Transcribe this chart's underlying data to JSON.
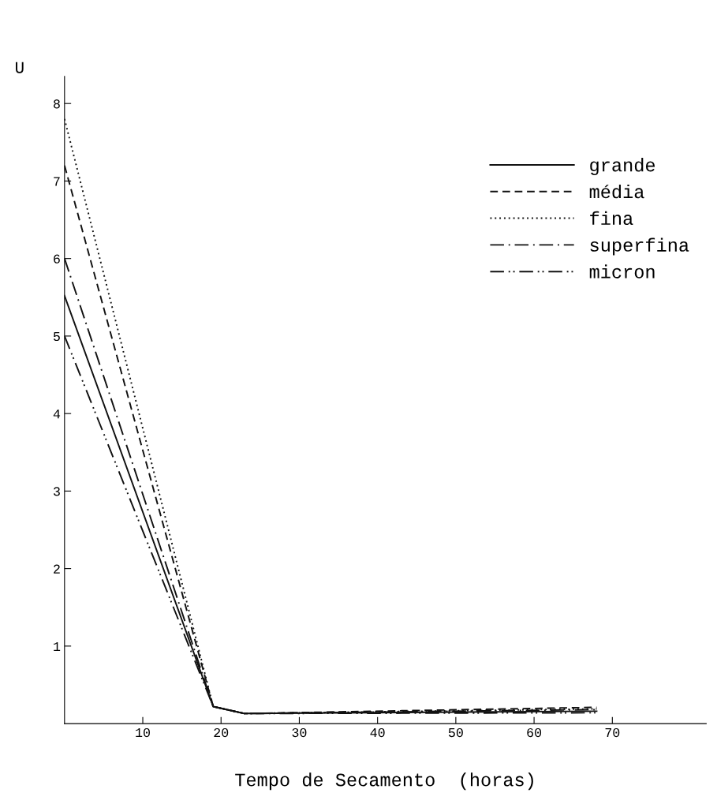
{
  "chart_data": {
    "type": "line",
    "xlabel": "Tempo de Secamento  (horas)",
    "ylabel": "U",
    "xlim": [
      0,
      82
    ],
    "ylim": [
      0,
      8.35
    ],
    "xticks": [
      10,
      20,
      30,
      40,
      50,
      60,
      70
    ],
    "yticks": [
      1,
      2,
      3,
      4,
      5,
      6,
      7,
      8
    ],
    "legend": "top right",
    "grid": false,
    "x": [
      0,
      19,
      23,
      68
    ],
    "series": [
      {
        "name": "grande",
        "color": "#111111",
        "line_style": "solid",
        "values": [
          5.52,
          0.22,
          0.13,
          0.16
        ]
      },
      {
        "name": "média",
        "color": "#111111",
        "line_style": "dashed",
        "values": [
          7.2,
          0.22,
          0.13,
          0.21
        ]
      },
      {
        "name": "fina",
        "color": "#111111",
        "line_style": "dotted",
        "values": [
          7.8,
          0.22,
          0.13,
          0.19
        ]
      },
      {
        "name": "superfina",
        "color": "#111111",
        "line_style": "dashdot",
        "values": [
          6.0,
          0.22,
          0.13,
          0.18
        ]
      },
      {
        "name": "micron",
        "color": "#111111",
        "line_style": "dashdotdot",
        "values": [
          5.0,
          0.22,
          0.13,
          0.14
        ]
      }
    ]
  }
}
